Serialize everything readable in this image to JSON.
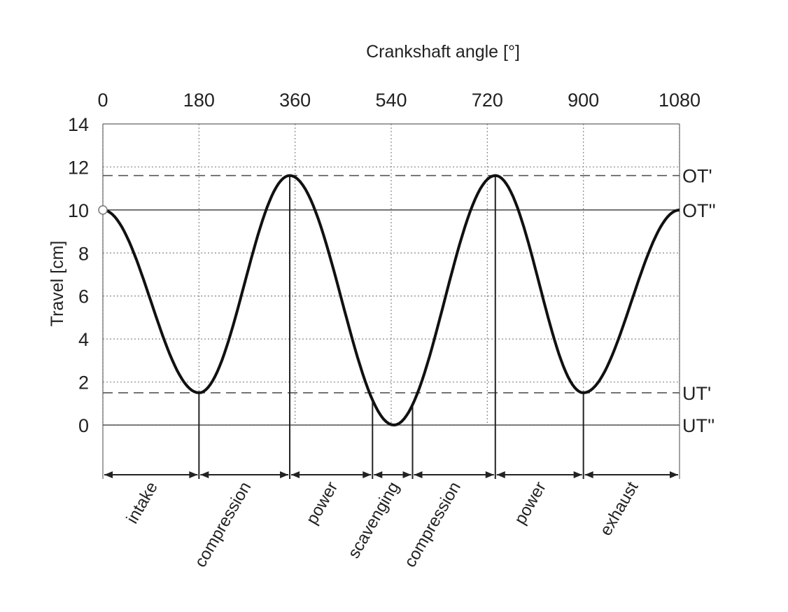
{
  "chart_data": {
    "type": "line",
    "title": "",
    "xlabel": "Crankshaft angle [°]",
    "ylabel": "Travel [cm]",
    "xlim": [
      0,
      1080
    ],
    "ylim": [
      0,
      14
    ],
    "x_ticks": [
      "0",
      "180",
      "360",
      "540",
      "720",
      "900",
      "1080"
    ],
    "x_tick_values": [
      0,
      180,
      360,
      540,
      720,
      900,
      1080
    ],
    "y_ticks": [
      "0",
      "2",
      "4",
      "6",
      "8",
      "10",
      "12",
      "14"
    ],
    "y_tick_values": [
      0,
      2,
      4,
      6,
      8,
      10,
      12,
      14
    ],
    "grid": true,
    "series": [
      {
        "x": [
          0,
          180,
          350,
          545,
          735,
          900,
          1080
        ],
        "y": [
          10,
          1.5,
          11.6,
          0,
          11.6,
          1.5,
          10
        ]
      }
    ],
    "reference_lines": [
      {
        "label": "OT'",
        "y": 11.6,
        "style": "dashed"
      },
      {
        "label": "OT''",
        "y": 10,
        "style": "solid"
      },
      {
        "label": "UT'",
        "y": 1.5,
        "style": "dashed"
      },
      {
        "label": "UT''",
        "y": 0,
        "style": "solid"
      }
    ],
    "phases": [
      {
        "label": "intake",
        "start": 0,
        "end": 180
      },
      {
        "label": "compression",
        "start": 180,
        "end": 350
      },
      {
        "label": "power",
        "start": 350,
        "end": 505
      },
      {
        "label": "scavenging",
        "start": 505,
        "end": 580
      },
      {
        "label": "compression",
        "start": 580,
        "end": 735
      },
      {
        "label": "power",
        "start": 735,
        "end": 900
      },
      {
        "label": "exhaust",
        "start": 900,
        "end": 1080
      }
    ]
  }
}
